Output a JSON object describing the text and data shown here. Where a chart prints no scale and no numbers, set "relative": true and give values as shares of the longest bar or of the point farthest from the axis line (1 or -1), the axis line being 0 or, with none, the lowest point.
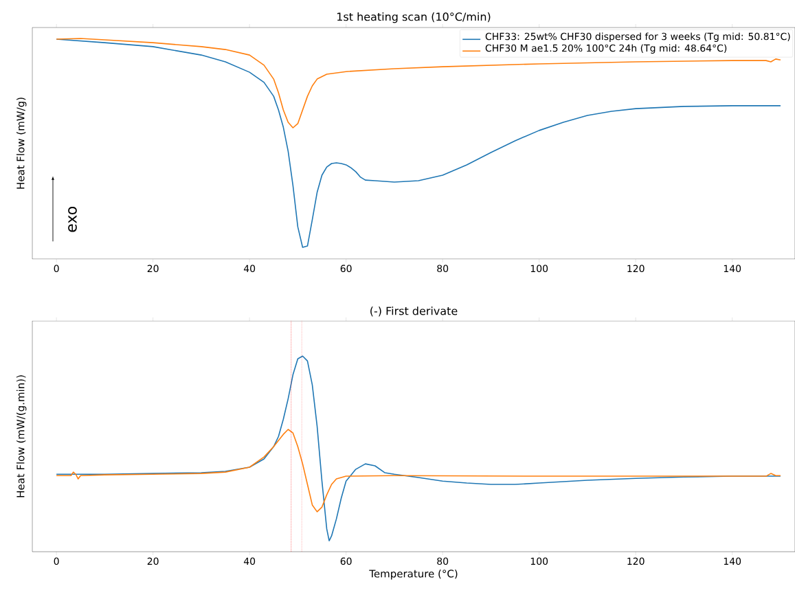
{
  "chart_data": [
    {
      "type": "line",
      "title": "1st heating scan (10°C/min)",
      "ylabel": "Heat Flow (mW/g)",
      "relative": true,
      "xlim": [
        -5,
        153
      ],
      "xticks": [
        0,
        20,
        40,
        60,
        80,
        100,
        120,
        140
      ],
      "legend": "top right",
      "annotations": [
        "exo"
      ],
      "series": [
        {
          "name": "CHF33: 25wt% CHF30 dispersed for 3 weeks (Tg mid: 50.81°C)",
          "color": "#1f77b4",
          "x": [
            0,
            10,
            20,
            30,
            35,
            40,
            43,
            45,
            46,
            47,
            48,
            49,
            50,
            51,
            52,
            53,
            54,
            55,
            56,
            57,
            58,
            59,
            60,
            61,
            62,
            63,
            64,
            66,
            70,
            75,
            80,
            85,
            90,
            95,
            100,
            105,
            110,
            115,
            120,
            130,
            140,
            150
          ],
          "values": [
            0.997,
            0.981,
            0.963,
            0.925,
            0.894,
            0.847,
            0.801,
            0.738,
            0.676,
            0.598,
            0.489,
            0.333,
            0.146,
            0.053,
            0.059,
            0.178,
            0.302,
            0.38,
            0.417,
            0.433,
            0.436,
            0.433,
            0.427,
            0.414,
            0.396,
            0.371,
            0.358,
            0.355,
            0.349,
            0.355,
            0.38,
            0.427,
            0.483,
            0.536,
            0.583,
            0.62,
            0.651,
            0.67,
            0.682,
            0.692,
            0.695,
            0.695
          ]
        },
        {
          "name": "CHF30 M ae1.5 20% 100°C 24h (Tg mid: 48.64°C)",
          "color": "#ff7f0e",
          "x": [
            0,
            5,
            10,
            20,
            30,
            35,
            40,
            43,
            45,
            46,
            47,
            48,
            49,
            50,
            51,
            52,
            53,
            54,
            56,
            60,
            70,
            80,
            100,
            120,
            140,
            147,
            148,
            149,
            150
          ],
          "values": [
            0.997,
            1.0,
            0.994,
            0.981,
            0.963,
            0.95,
            0.925,
            0.879,
            0.816,
            0.754,
            0.676,
            0.62,
            0.595,
            0.614,
            0.676,
            0.738,
            0.785,
            0.816,
            0.838,
            0.85,
            0.863,
            0.872,
            0.885,
            0.894,
            0.9,
            0.9,
            0.894,
            0.907,
            0.903
          ]
        }
      ]
    },
    {
      "type": "line",
      "title": "(-) First derivate",
      "xlabel": "Temperature (°C)",
      "ylabel": "Heat Flow (mW/(g.min))",
      "relative": true,
      "xlim": [
        -5,
        153
      ],
      "xticks": [
        0,
        20,
        40,
        60,
        80,
        100,
        120,
        140
      ],
      "ref_lines": [
        {
          "axis": "x",
          "value": 48.64,
          "color": "#ff0000",
          "line_style": "dotted"
        },
        {
          "axis": "x",
          "value": 50.81,
          "color": "#ff0000",
          "line_style": "dotted"
        }
      ],
      "series": [
        {
          "color": "#1f77b4",
          "x": [
            0,
            10,
            20,
            30,
            35,
            40,
            43,
            45,
            46,
            47,
            48,
            49,
            50,
            51,
            52,
            53,
            54,
            55,
            56,
            56.5,
            57,
            58,
            59,
            60,
            62,
            64,
            66,
            68,
            70,
            75,
            80,
            85,
            90,
            95,
            100,
            110,
            120,
            130,
            140,
            150
          ],
          "values": [
            0.396,
            0.396,
            0.4,
            0.404,
            0.411,
            0.432,
            0.474,
            0.537,
            0.589,
            0.677,
            0.782,
            0.905,
            0.986,
            1.0,
            0.975,
            0.853,
            0.642,
            0.361,
            0.116,
            0.056,
            0.081,
            0.168,
            0.274,
            0.361,
            0.421,
            0.449,
            0.439,
            0.404,
            0.396,
            0.379,
            0.361,
            0.351,
            0.344,
            0.344,
            0.351,
            0.365,
            0.375,
            0.382,
            0.386,
            0.386
          ]
        },
        {
          "color": "#ff7f0e",
          "x": [
            0,
            3,
            3.5,
            4,
            4.5,
            5,
            10,
            20,
            30,
            35,
            40,
            43,
            45,
            47,
            48,
            49,
            50,
            51,
            52,
            53,
            54,
            55,
            56,
            57,
            58,
            60,
            70,
            100,
            140,
            147,
            148,
            149,
            150
          ],
          "values": [
            0.389,
            0.389,
            0.407,
            0.396,
            0.372,
            0.389,
            0.393,
            0.396,
            0.4,
            0.407,
            0.432,
            0.484,
            0.537,
            0.6,
            0.625,
            0.607,
            0.537,
            0.449,
            0.344,
            0.239,
            0.204,
            0.228,
            0.291,
            0.344,
            0.372,
            0.386,
            0.389,
            0.386,
            0.386,
            0.386,
            0.4,
            0.389,
            0.389
          ]
        }
      ]
    }
  ]
}
